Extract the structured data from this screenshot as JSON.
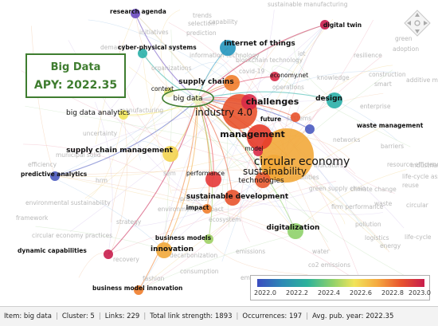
{
  "info_box": {
    "title": "Big Data",
    "apy_label": "APY: 2022.35"
  },
  "legend": {
    "ticks": [
      "2022.0",
      "2022.2",
      "2022.4",
      "2022.6",
      "2022.8",
      "2023.0"
    ]
  },
  "status_bar": [
    {
      "label": "Item:",
      "value": "big data"
    },
    {
      "label": "Cluster:",
      "value": "5"
    },
    {
      "label": "Links:",
      "value": "229"
    },
    {
      "label": "Total link strength:",
      "value": "1893"
    },
    {
      "label": "Occurrences:",
      "value": "197"
    },
    {
      "label": "Avg. pub. year:",
      "value": "2022.35"
    }
  ],
  "colors": {
    "highlight_link": "#a0c83c",
    "highlight_ring": "#3f7d30",
    "legend_start": "#3b4cc0",
    "legend_end": "#c81e4d"
  },
  "network": {
    "nodes": [
      {
        "label": "circular economy",
        "color": "#f2a83a",
        "size": 5,
        "text": 5,
        "bold": false
      },
      {
        "label": "sustainability",
        "color": "#f2a83a",
        "size": 3,
        "text": 4,
        "bold": false
      },
      {
        "label": "industry 4.0",
        "color": "#e8532d",
        "size": 4,
        "text": 4,
        "bold": false
      },
      {
        "label": "management",
        "color": "#e63a2a",
        "size": 3,
        "text": 3,
        "bold": true
      },
      {
        "label": "technologies",
        "color": "#e85a30",
        "size": 2,
        "text": 2,
        "bold": false
      },
      {
        "label": "supply chains",
        "color": "#ef7d2b",
        "size": 2,
        "text": 2,
        "bold": true
      },
      {
        "label": "challenges",
        "color": "#d82a48",
        "size": 2,
        "text": 3,
        "bold": true
      },
      {
        "label": "big data",
        "color": "#d6e86a",
        "size": 1,
        "text": 2,
        "bold": false
      },
      {
        "label": "internet of things",
        "color": "#2596be",
        "size": 2,
        "text": 2,
        "bold": true
      },
      {
        "label": "design",
        "color": "#2ab0a8",
        "size": 2,
        "text": 2,
        "bold": true
      },
      {
        "label": "digital twin",
        "color": "#c81e4d",
        "size": 1,
        "text": 1,
        "bold": true
      },
      {
        "label": "economy.net",
        "color": "#d82a48",
        "size": 1,
        "text": 1,
        "bold": false
      },
      {
        "label": "future",
        "color": "#e8532d",
        "size": 1,
        "text": 1,
        "bold": true
      },
      {
        "label": "waste management",
        "color": "#4a5ac0",
        "size": 1,
        "text": 1,
        "bold": true
      },
      {
        "label": "supply chain management",
        "color": "#f3d450",
        "size": 2,
        "text": 2,
        "bold": true
      },
      {
        "label": "performance",
        "color": "#e63a3a",
        "size": 2,
        "text": 1,
        "bold": false
      },
      {
        "label": "sustainable development",
        "color": "#e8532d",
        "size": 2,
        "text": 2,
        "bold": true
      },
      {
        "label": "impact",
        "color": "#ef7d2b",
        "size": 1,
        "text": 1,
        "bold": true
      },
      {
        "label": "model",
        "color": "#d82a48",
        "size": 1,
        "text": 1,
        "bold": false
      },
      {
        "label": "business models",
        "color": "#9fd064",
        "size": 1,
        "text": 1,
        "bold": true
      },
      {
        "label": "innovation",
        "color": "#f2a83a",
        "size": 2,
        "text": 2,
        "bold": true
      },
      {
        "label": "digitalization",
        "color": "#8fd16a",
        "size": 2,
        "text": 2,
        "bold": true
      },
      {
        "label": "dynamic capabilities",
        "color": "#c81e4d",
        "size": 1,
        "text": 1,
        "bold": true
      },
      {
        "label": "business model innovation",
        "color": "#ef7d2b",
        "size": 1,
        "text": 1,
        "bold": true
      },
      {
        "label": "predictive analytics",
        "color": "#4a5ac0",
        "size": 1,
        "text": 1,
        "bold": true
      },
      {
        "label": "research agenda",
        "color": "#6a4ac0",
        "size": 1,
        "text": 1,
        "bold": true
      },
      {
        "label": "cyber-physical systems",
        "color": "#2ab0a8",
        "size": 1,
        "text": 1,
        "bold": true
      },
      {
        "label": "big data analytics",
        "color": "#f1e45a",
        "size": 1,
        "text": 2,
        "bold": false
      },
      {
        "label": "context",
        "color": "#e0e070",
        "size": 1,
        "text": 1,
        "bold": false
      }
    ],
    "faint_labels": [
      "sustainable manufacturing",
      "trends",
      "selection",
      "initiatives",
      "demand",
      "prediction",
      "information-technology",
      "blockchain technology",
      "iot",
      "resilience",
      "smart",
      "additive manufacturing",
      "construction",
      "manufacturing",
      "operations",
      "systems",
      "networks",
      "resource efficiency",
      "industrial symbiosis",
      "life-cycle assessment",
      "reuse",
      "waste",
      "circular",
      "municipal solid",
      "efficiency",
      "hrm",
      "green supply chain",
      "pollution",
      "climate change",
      "environmental impact",
      "ecosystem",
      "environmental sustainability",
      "framework",
      "circular economy practices",
      "sem",
      "firm performance",
      "logistics",
      "life-cycle",
      "energy",
      "water",
      "emissions",
      "co2 emissions",
      "decarbonization",
      "consumption",
      "recovery",
      "fashion",
      "empirical evidence",
      "capabilities",
      "capability",
      "covid-19",
      "knowledge",
      "green",
      "adoption",
      "barriers",
      "enterprise",
      "uncertainty",
      "strategy",
      "organizations",
      "practices",
      "indicators"
    ]
  }
}
